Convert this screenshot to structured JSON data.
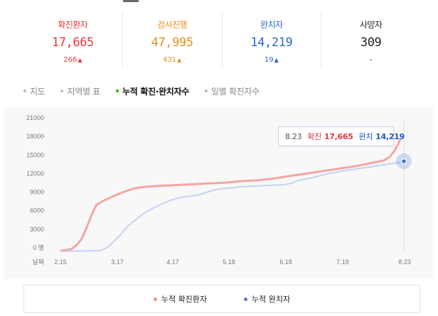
{
  "stats": [
    {
      "label": "확진환자",
      "value": "17,665",
      "delta": "266",
      "direction": "up",
      "color": "#e0393e"
    },
    {
      "label": "검사진행",
      "value": "47,995",
      "delta": "431",
      "direction": "up",
      "color": "#e5901c"
    },
    {
      "label": "완치자",
      "value": "14,219",
      "delta": "19",
      "direction": "up",
      "color": "#3266d0"
    },
    {
      "label": "사망자",
      "value": "309",
      "delta": "-",
      "direction": "",
      "color": "#222222"
    }
  ],
  "tabs": [
    {
      "label": "지도",
      "active": false
    },
    {
      "label": "지역별 표",
      "active": false
    },
    {
      "label": "누적 확진·완치자수",
      "active": true
    },
    {
      "label": "일별 확진자수",
      "active": false
    }
  ],
  "axis": {
    "y_ticks": [
      "21000",
      "18000",
      "15000",
      "12000",
      "9000",
      "6000",
      "3000",
      "0 명"
    ],
    "x_title": "날짜",
    "x_ticks": [
      "2.15",
      "3.17",
      "4.17",
      "5.18",
      "6.18",
      "7.19",
      "8.23"
    ]
  },
  "tooltip": {
    "date": "8.23",
    "confirmed_label": "확진",
    "confirmed_value": "17,665",
    "recovered_label": "완치",
    "recovered_value": "14,219"
  },
  "legend": [
    {
      "label": "누적 확진환자",
      "color": "#f4908c"
    },
    {
      "label": "누적 완치자",
      "color": "#5b7bd5"
    }
  ],
  "colors": {
    "confirmed_line": "#f4a5a3",
    "recovered_line": "#c5d2f3",
    "marker": "#3b6fe0"
  }
}
